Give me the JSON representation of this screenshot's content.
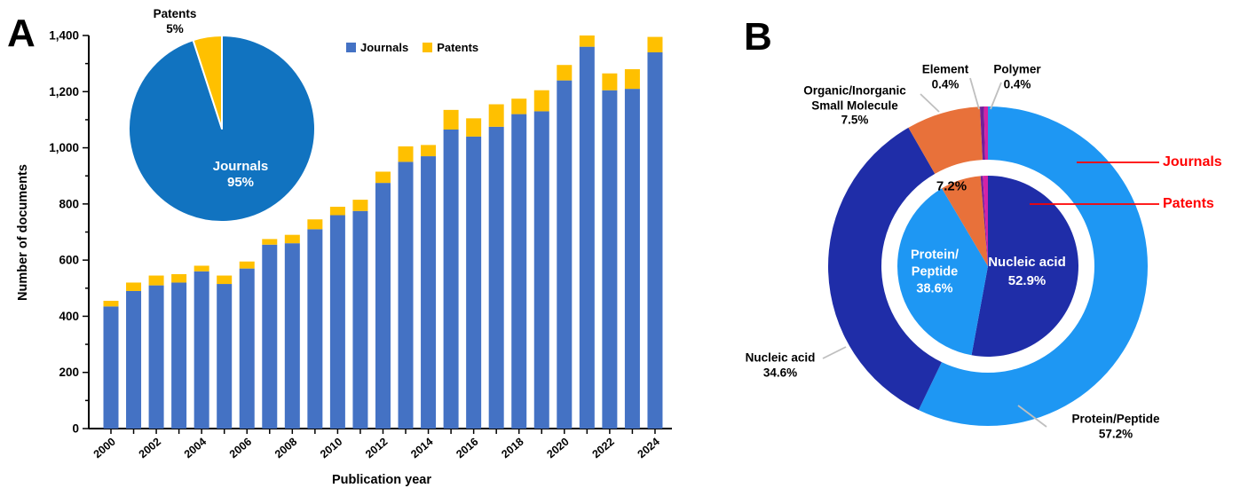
{
  "colors": {
    "journals_bar": "#4472C4",
    "patents_bar": "#FFC000",
    "inset_pie_journals": "#1173C0",
    "inset_pie_patents": "#FFC000",
    "donut_protein": "#1E97F3",
    "donut_nucleic": "#1F2DA8",
    "donut_organic": "#E8713A",
    "donut_element": "#70209A",
    "donut_polymer": "#D322A6",
    "leader_gray": "#BFBFBF",
    "leader_red": "#FF0000",
    "axis_black": "#000000"
  },
  "panels": {
    "a": {
      "letter": "A",
      "y_axis_title": "Number of documents",
      "x_axis_title": "Publication year",
      "legend": [
        {
          "label": "Journals",
          "color_key": "journals_bar"
        },
        {
          "label": "Patents",
          "color_key": "patents_bar"
        }
      ],
      "inset_pie_labels": {
        "patents_name": "Patents",
        "patents_pct": "5%",
        "journals_name": "Journals",
        "journals_pct": "95%"
      }
    },
    "b": {
      "letter": "B",
      "callouts": {
        "organic_line1": "Organic/Inorganic",
        "organic_line2": "Small Molecule",
        "organic_pct": "7.5%",
        "element_name": "Element",
        "element_pct": "0.4%",
        "polymer_name": "Polymer",
        "polymer_pct": "0.4%",
        "nucleic_name": "Nucleic acid",
        "nucleic_pct": "34.6%",
        "protein_name": "Protein/Peptide",
        "protein_pct": "57.2%",
        "journals_ring": "Journals",
        "patents_ring": "Patents"
      },
      "inner_labels": {
        "protein_line1": "Protein/",
        "protein_line2": "Peptide",
        "protein_pct": "38.6%",
        "nucleic_name": "Nucleic acid",
        "nucleic_pct": "52.9%",
        "organic_pct": "7.2%"
      }
    }
  },
  "chart_data": [
    {
      "type": "bar",
      "stacked": true,
      "title": "",
      "xlabel": "Publication year",
      "ylabel": "Number of documents",
      "ylim": [
        0,
        1400
      ],
      "ytick_step": 200,
      "ytick_minor_step": 100,
      "grid": false,
      "legend_position": "top-center",
      "categories": [
        2000,
        2001,
        2002,
        2003,
        2004,
        2005,
        2006,
        2007,
        2008,
        2009,
        2010,
        2011,
        2012,
        2013,
        2014,
        2015,
        2016,
        2017,
        2018,
        2019,
        2020,
        2021,
        2022,
        2023,
        2024
      ],
      "series": [
        {
          "name": "Journals",
          "color_key": "journals_bar",
          "values": [
            435,
            490,
            510,
            520,
            560,
            515,
            570,
            655,
            660,
            710,
            760,
            775,
            875,
            950,
            970,
            1065,
            1040,
            1075,
            1120,
            1130,
            1240,
            1360,
            1205,
            1210,
            1340
          ]
        },
        {
          "name": "Patents",
          "color_key": "patents_bar",
          "values": [
            20,
            30,
            35,
            30,
            20,
            30,
            25,
            20,
            30,
            35,
            30,
            40,
            40,
            55,
            40,
            70,
            65,
            80,
            55,
            75,
            55,
            40,
            60,
            70,
            55
          ]
        }
      ]
    },
    {
      "type": "pie",
      "title": "",
      "slices": [
        {
          "name": "Journals",
          "value": 95,
          "color_key": "inset_pie_journals"
        },
        {
          "name": "Patents",
          "value": 5,
          "color_key": "inset_pie_patents"
        }
      ],
      "start_angle_deg": 0,
      "note": "inset pie inside panel A; Patents slice sits just left of 12 o'clock"
    },
    {
      "type": "pie",
      "subtype": "nested-donut",
      "title": "",
      "rings": [
        {
          "name": "Journals",
          "position": "outer",
          "segments": [
            {
              "name": "Protein/Peptide",
              "value": 57.2,
              "color_key": "donut_protein"
            },
            {
              "name": "Nucleic acid",
              "value": 34.6,
              "color_key": "donut_nucleic"
            },
            {
              "name": "Organic/Inorganic Small Molecule",
              "value": 7.5,
              "color_key": "donut_organic"
            },
            {
              "name": "Element",
              "value": 0.4,
              "color_key": "donut_element"
            },
            {
              "name": "Polymer",
              "value": 0.4,
              "color_key": "donut_polymer"
            }
          ]
        },
        {
          "name": "Patents",
          "position": "inner",
          "segments": [
            {
              "name": "Nucleic acid",
              "value": 52.9,
              "color_key": "donut_nucleic"
            },
            {
              "name": "Protein/Peptide",
              "value": 38.6,
              "color_key": "donut_protein"
            },
            {
              "name": "Organic/Inorganic Small Molecule",
              "value": 7.2,
              "color_key": "donut_organic"
            },
            {
              "name": "Element",
              "value": 0.4,
              "color_key": "donut_element"
            },
            {
              "name": "Polymer",
              "value": 0.9,
              "color_key": "donut_polymer"
            }
          ]
        }
      ]
    }
  ]
}
